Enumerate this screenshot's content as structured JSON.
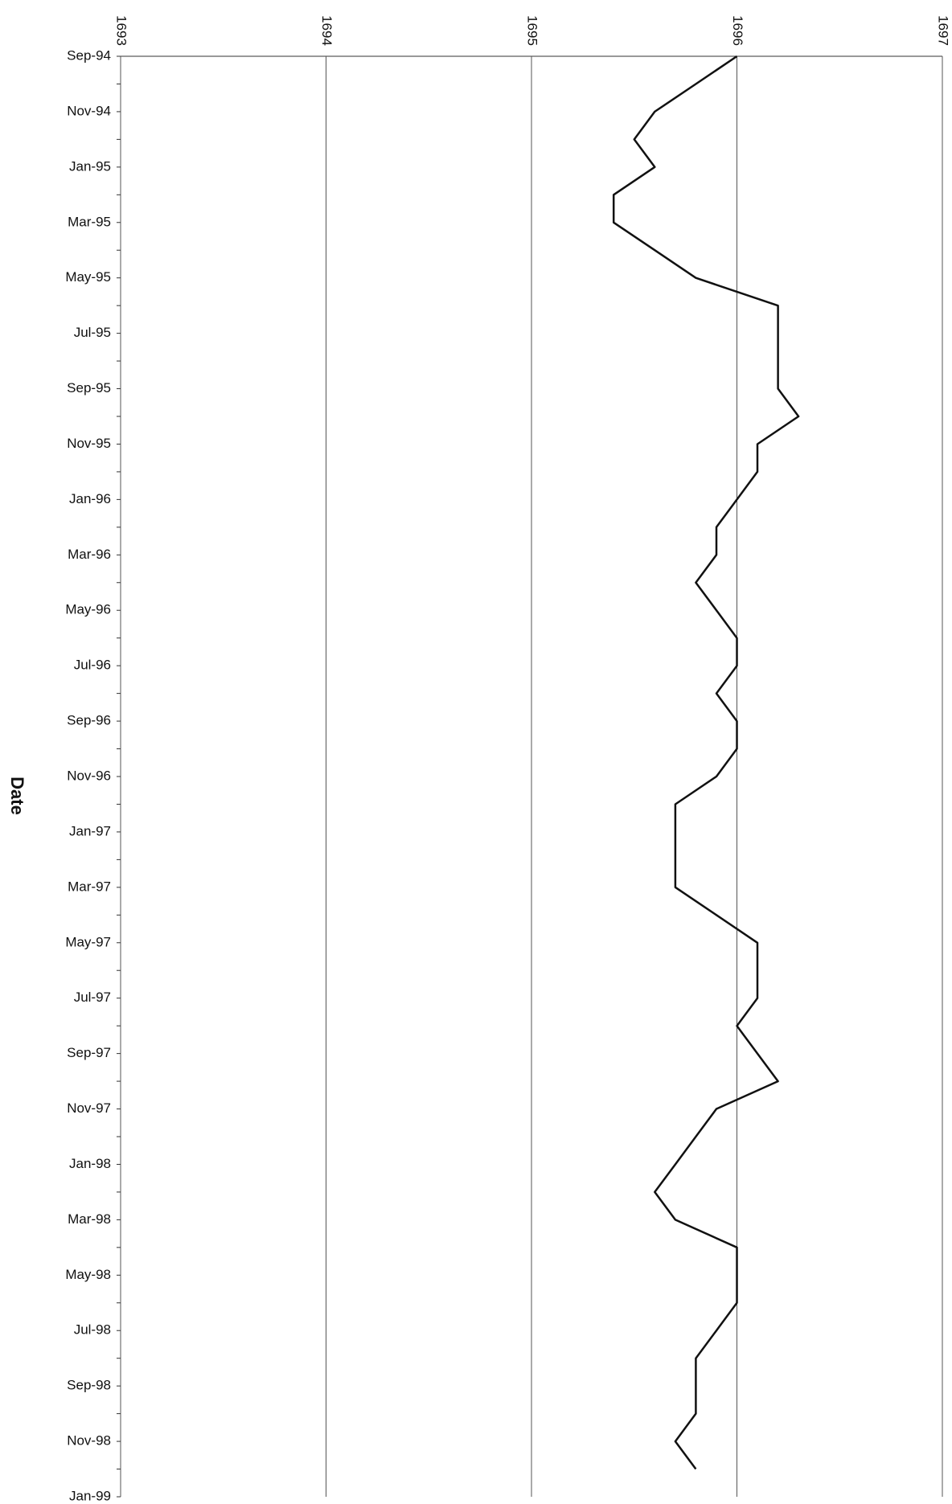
{
  "chart_data": {
    "type": "line",
    "orientation": "vertical-time",
    "axis_label": "Date",
    "categories": [
      "Sep-94",
      null,
      "Nov-94",
      null,
      "Jan-95",
      null,
      "Mar-95",
      null,
      "May-95",
      null,
      "Jul-95",
      null,
      "Sep-95",
      null,
      "Nov-95",
      null,
      "Jan-96",
      null,
      "Mar-96",
      null,
      "May-96",
      null,
      "Jul-96",
      null,
      "Sep-96",
      null,
      "Nov-96",
      null,
      "Jan-97",
      null,
      "Mar-97",
      null,
      "May-97",
      null,
      "Jul-97",
      null,
      "Sep-97",
      null,
      "Nov-97",
      null,
      "Jan-98",
      null,
      "Mar-98",
      null,
      "May-98",
      null,
      "Jul-98",
      null,
      "Sep-98",
      null,
      "Nov-98",
      null,
      "Jan-99"
    ],
    "values": [
      1696.0,
      1695.8,
      1695.6,
      1695.5,
      1695.6,
      1695.4,
      1695.4,
      1695.6,
      1695.8,
      1696.2,
      1696.2,
      1696.2,
      1696.2,
      1696.3,
      1696.1,
      1696.1,
      1696.0,
      1695.9,
      1695.9,
      1695.8,
      1695.9,
      1696.0,
      1696.0,
      1695.9,
      1696.0,
      1696.0,
      1695.9,
      1695.7,
      1695.7,
      1695.7,
      1695.7,
      1695.9,
      1696.1,
      1696.1,
      1696.1,
      1696.0,
      1696.1,
      1696.2,
      1695.9,
      1695.8,
      1695.7,
      1695.6,
      1695.7,
      1696.0,
      1696.0,
      1696.0,
      1695.9,
      1695.8,
      1695.8,
      1695.8,
      1695.7,
      1695.8,
      null
    ],
    "color": "#111111",
    "xlim": [
      1693,
      1697
    ],
    "xticks": [
      1693,
      1694,
      1695,
      1696,
      1697
    ],
    "grid": true
  }
}
